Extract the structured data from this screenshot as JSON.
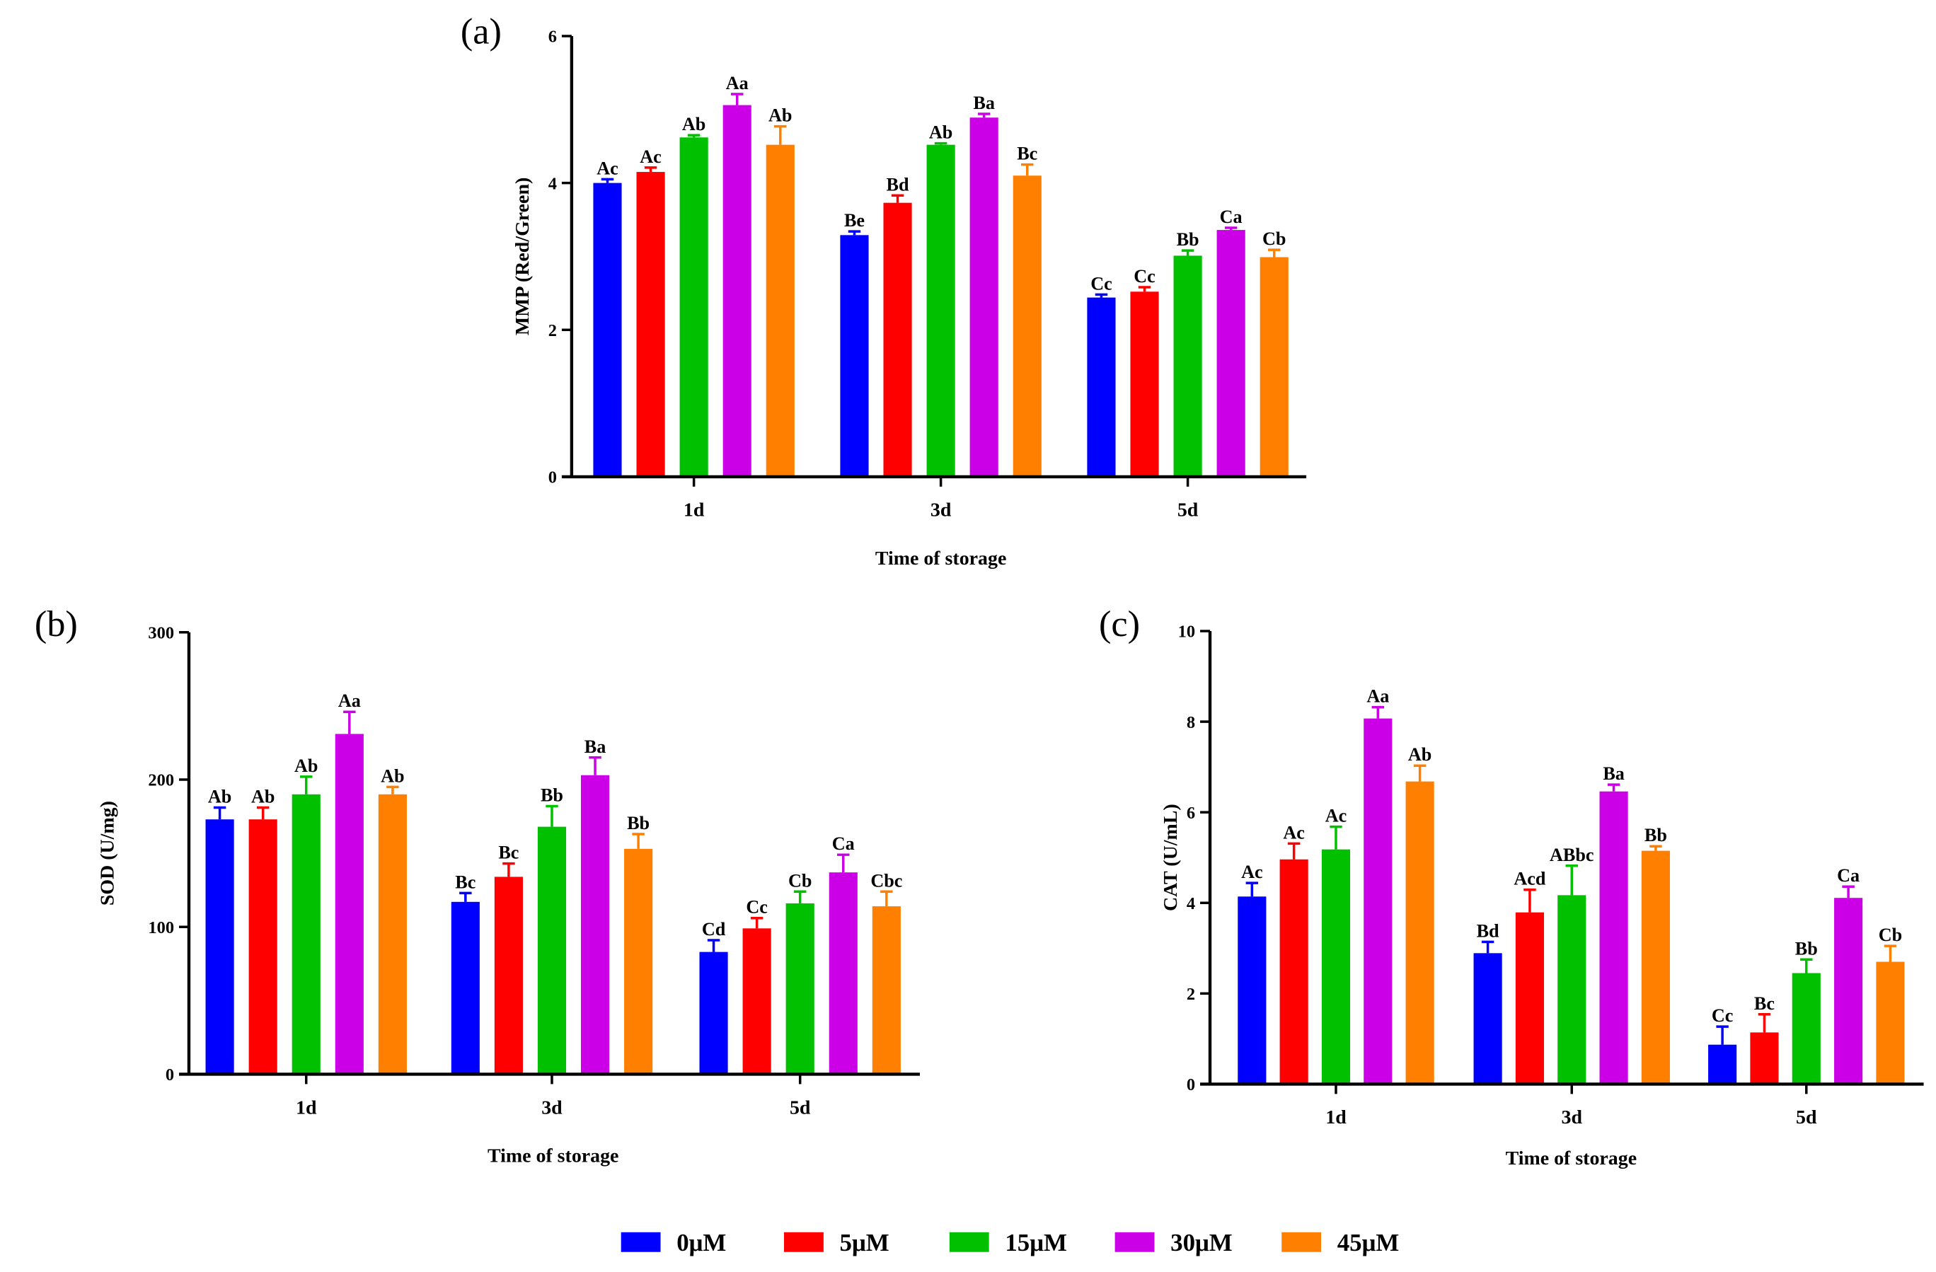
{
  "colors": {
    "0μM": "#0000ff",
    "5μM": "#ff0000",
    "15μM": "#00c000",
    "30μM": "#cc00e6",
    "45μM": "#ff8000"
  },
  "legend": [
    "0μM",
    "5μM",
    "15μM",
    "30μM",
    "45μM"
  ],
  "chart_data": [
    {
      "type": "bar",
      "panel_label": "(a)",
      "title": "",
      "xlabel": "Time of storage",
      "ylabel": "MMP (Red/Green)",
      "categories": [
        "1d",
        "3d",
        "5d"
      ],
      "ylim": [
        0,
        6
      ],
      "yticks": [
        "0",
        "2",
        "4",
        "6"
      ],
      "series": [
        {
          "name": "0μM",
          "values": [
            4.0,
            3.29,
            2.44
          ],
          "errors": [
            0.05,
            0.05,
            0.04
          ],
          "letters": [
            "Ac",
            "Be",
            "Cc"
          ]
        },
        {
          "name": "5μM",
          "values": [
            4.15,
            3.73,
            2.52
          ],
          "errors": [
            0.06,
            0.1,
            0.06
          ],
          "letters": [
            "Ac",
            "Bd",
            "Cc"
          ]
        },
        {
          "name": "15μM",
          "values": [
            4.62,
            4.52,
            3.01
          ],
          "errors": [
            0.03,
            0.02,
            0.07
          ],
          "letters": [
            "Ab",
            "Ab",
            "Bb"
          ]
        },
        {
          "name": "30μM",
          "values": [
            5.06,
            4.89,
            3.36
          ],
          "errors": [
            0.15,
            0.05,
            0.03
          ],
          "letters": [
            "Aa",
            "Ba",
            "Ca"
          ]
        },
        {
          "name": "45μM",
          "values": [
            4.52,
            4.1,
            2.99
          ],
          "errors": [
            0.25,
            0.15,
            0.1
          ],
          "letters": [
            "Ab",
            "Bc",
            "Cb"
          ]
        }
      ]
    },
    {
      "type": "bar",
      "panel_label": "(b)",
      "title": "",
      "xlabel": "Time of storage",
      "ylabel": "SOD (U/mg)",
      "categories": [
        "1d",
        "3d",
        "5d"
      ],
      "ylim": [
        0,
        300
      ],
      "yticks": [
        "0",
        "100",
        "200",
        "300"
      ],
      "series": [
        {
          "name": "0μM",
          "values": [
            173,
            117,
            83
          ],
          "errors": [
            8,
            6,
            8
          ],
          "letters": [
            "Ab",
            "Bc",
            "Cd"
          ]
        },
        {
          "name": "5μM",
          "values": [
            173,
            134,
            99
          ],
          "errors": [
            8,
            9,
            7
          ],
          "letters": [
            "Ab",
            "Bc",
            "Cc"
          ]
        },
        {
          "name": "15μM",
          "values": [
            190,
            168,
            116
          ],
          "errors": [
            12,
            14,
            8
          ],
          "letters": [
            "Ab",
            "Bb",
            "Cb"
          ]
        },
        {
          "name": "30μM",
          "values": [
            231,
            203,
            137
          ],
          "errors": [
            15,
            12,
            12
          ],
          "letters": [
            "Aa",
            "Ba",
            "Ca"
          ]
        },
        {
          "name": "45μM",
          "values": [
            190,
            153,
            114
          ],
          "errors": [
            5,
            10,
            10
          ],
          "letters": [
            "Ab",
            "Bb",
            "Cbc"
          ]
        }
      ]
    },
    {
      "type": "bar",
      "panel_label": "(c)",
      "title": "",
      "xlabel": "Time of storage",
      "ylabel": "CAT (U/mL)",
      "categories": [
        "1d",
        "3d",
        "5d"
      ],
      "ylim": [
        0,
        10
      ],
      "yticks": [
        "0",
        "2",
        "4",
        "6",
        "8",
        "10"
      ],
      "series": [
        {
          "name": "0μM",
          "values": [
            4.14,
            2.89,
            0.87
          ],
          "errors": [
            0.3,
            0.25,
            0.4
          ],
          "letters": [
            "Ac",
            "Bd",
            "Cc"
          ]
        },
        {
          "name": "5μM",
          "values": [
            4.96,
            3.79,
            1.14
          ],
          "errors": [
            0.35,
            0.5,
            0.4
          ],
          "letters": [
            "Ac",
            "Acd",
            "Bc"
          ]
        },
        {
          "name": "15μM",
          "values": [
            5.18,
            4.17,
            2.45
          ],
          "errors": [
            0.5,
            0.65,
            0.3
          ],
          "letters": [
            "Ac",
            "ABbc",
            "Bb"
          ]
        },
        {
          "name": "30μM",
          "values": [
            8.07,
            6.46,
            4.11
          ],
          "errors": [
            0.25,
            0.15,
            0.25
          ],
          "letters": [
            "Aa",
            "Ba",
            "Ca"
          ]
        },
        {
          "name": "45μM",
          "values": [
            6.68,
            5.15,
            2.7
          ],
          "errors": [
            0.35,
            0.1,
            0.35
          ],
          "letters": [
            "Ab",
            "Bb",
            "Cb"
          ]
        }
      ]
    }
  ]
}
